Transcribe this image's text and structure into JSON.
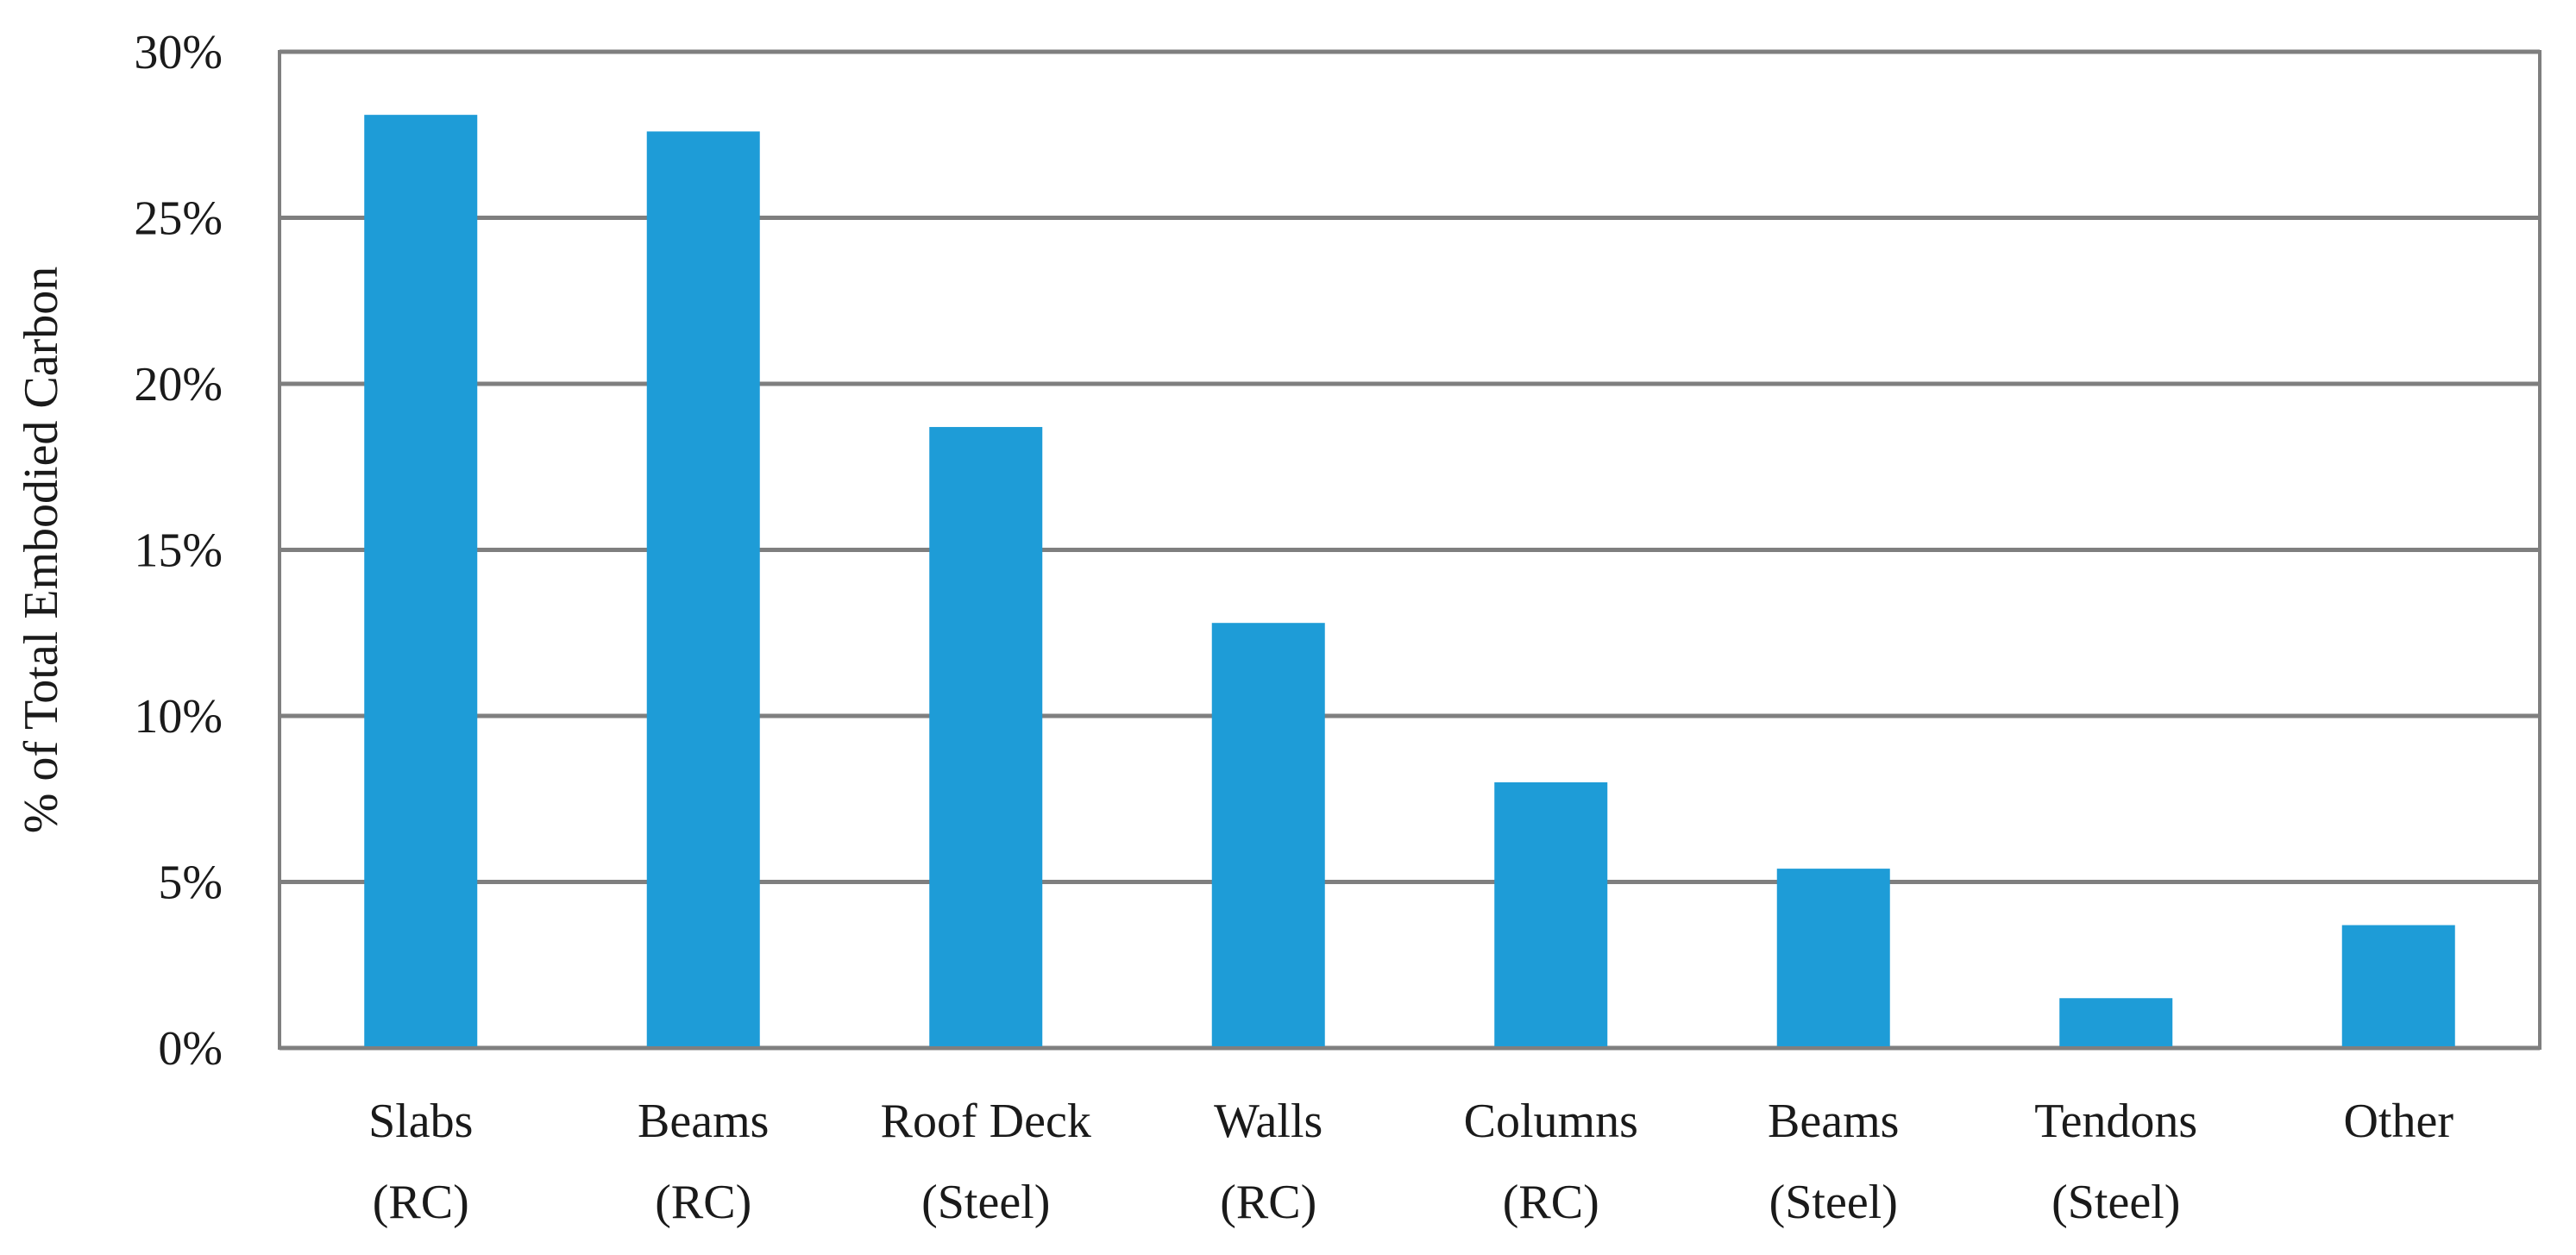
{
  "chart_data": {
    "type": "bar",
    "categories": [
      [
        "Slabs",
        "(RC)"
      ],
      [
        "Beams",
        "(RC)"
      ],
      [
        "Roof Deck",
        "(Steel)"
      ],
      [
        "Walls",
        "(RC)"
      ],
      [
        "Columns",
        "(RC)"
      ],
      [
        "Beams",
        "(Steel)"
      ],
      [
        "Tendons",
        "(Steel)"
      ],
      [
        "Other"
      ]
    ],
    "values": [
      28.1,
      27.6,
      18.7,
      12.8,
      8.0,
      5.4,
      1.5,
      3.7
    ],
    "ylabel": "% of Total Embodied Carbon",
    "xlabel": "",
    "ylim": [
      0,
      30
    ],
    "yticks": [
      0,
      5,
      10,
      15,
      20,
      25,
      30
    ],
    "ytick_labels": [
      "0%",
      "5%",
      "10%",
      "15%",
      "20%",
      "25%",
      "30%"
    ],
    "grid": true,
    "bar_color": "#1e9cd7",
    "grid_color": "#7f7f7f"
  }
}
